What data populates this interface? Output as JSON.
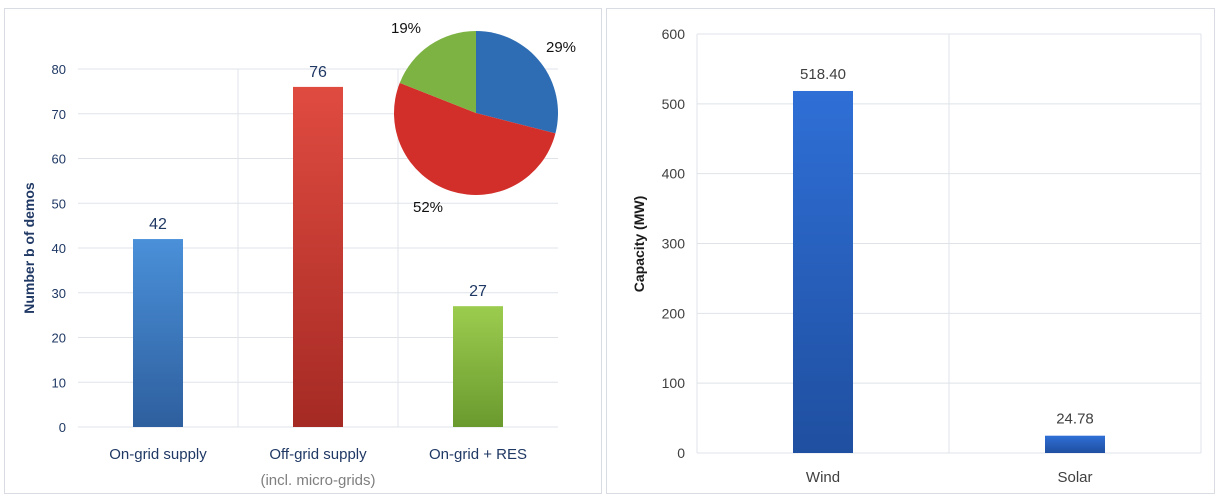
{
  "colors": {
    "grid": "#dfe3e8",
    "axis_left": "#1f3864",
    "axis_right": "#404040",
    "blue_top": "#4a90d9",
    "blue_bottom": "#2e5f9e",
    "red_top": "#e04b40",
    "red_bottom": "#a52a24",
    "green_top": "#9ccc4e",
    "green_bottom": "#6a9a2e",
    "pie_blue": "#2e6db4",
    "pie_red": "#d32f2a",
    "pie_green": "#7cb342",
    "wind_top": "#2f6fd6",
    "wind_bottom": "#1f4fa0"
  },
  "chart_data": [
    {
      "type": "bar",
      "categories": [
        "On-grid supply",
        "Off-grid supply",
        "On-grid + RES"
      ],
      "category_sublabels": [
        "",
        "(incl. micro-grids)",
        ""
      ],
      "values": [
        42,
        76,
        27
      ],
      "data_labels": [
        "42",
        "76",
        "27"
      ],
      "ylabel": "Number b of demos",
      "ylim": [
        0,
        80
      ],
      "yticks": [
        0,
        10,
        20,
        30,
        40,
        50,
        60,
        70,
        80
      ],
      "grid": true,
      "bar_colors": [
        "blue",
        "red",
        "green"
      ]
    },
    {
      "type": "pie",
      "values": [
        29,
        52,
        19
      ],
      "labels": [
        "29%",
        "52%",
        "19%"
      ],
      "colors": [
        "pie_blue",
        "pie_red",
        "pie_green"
      ]
    },
    {
      "type": "bar",
      "categories": [
        "Wind",
        "Solar"
      ],
      "values": [
        518.4,
        24.78
      ],
      "data_labels": [
        "518.40",
        "24.78"
      ],
      "ylabel": "Capacity (MW)",
      "ylim": [
        0,
        600
      ],
      "yticks": [
        0,
        100,
        200,
        300,
        400,
        500,
        600
      ],
      "grid": true
    }
  ]
}
